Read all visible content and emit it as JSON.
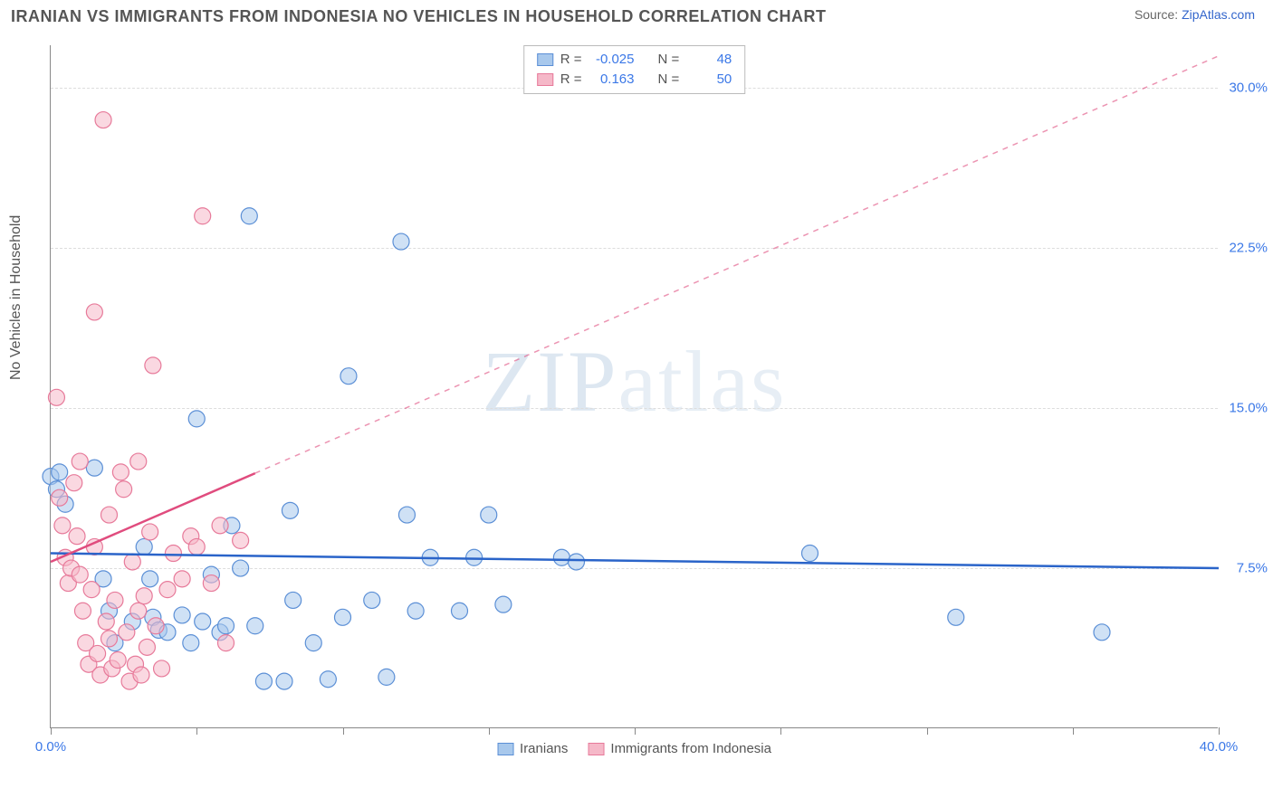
{
  "title": "IRANIAN VS IMMIGRANTS FROM INDONESIA NO VEHICLES IN HOUSEHOLD CORRELATION CHART",
  "source_prefix": "Source: ",
  "source_link": "ZipAtlas.com",
  "ylabel": "No Vehicles in Household",
  "watermark1": "ZIP",
  "watermark2": "atlas",
  "chart": {
    "type": "scatter",
    "xlim": [
      0,
      40
    ],
    "ylim": [
      0,
      32
    ],
    "xtick_positions": [
      0,
      5,
      10,
      15,
      20,
      25,
      30,
      35,
      40
    ],
    "xtick_labels_shown": {
      "0": "0.0%",
      "40": "40.0%"
    },
    "ytick_positions": [
      7.5,
      15.0,
      22.5,
      30.0
    ],
    "ytick_labels": [
      "7.5%",
      "15.0%",
      "22.5%",
      "30.0%"
    ],
    "grid_color": "#dddddd",
    "axis_color": "#888888",
    "background": "#ffffff",
    "series": [
      {
        "name": "Iranians",
        "fill": "#a8c8ec",
        "stroke": "#5b8fd6",
        "line_color": "#2a64c9",
        "R": "-0.025",
        "N": "48",
        "marker_r": 9,
        "trend": {
          "x1": 0,
          "y1": 8.2,
          "x2": 40,
          "y2": 7.5,
          "solid_until_x": 40
        },
        "points": [
          [
            0.0,
            11.8
          ],
          [
            0.2,
            11.2
          ],
          [
            0.3,
            12.0
          ],
          [
            0.5,
            10.5
          ],
          [
            1.5,
            12.2
          ],
          [
            1.8,
            7.0
          ],
          [
            2.0,
            5.5
          ],
          [
            2.2,
            4.0
          ],
          [
            2.8,
            5.0
          ],
          [
            3.2,
            8.5
          ],
          [
            3.4,
            7.0
          ],
          [
            3.5,
            5.2
          ],
          [
            3.7,
            4.6
          ],
          [
            4.0,
            4.5
          ],
          [
            4.5,
            5.3
          ],
          [
            4.8,
            4.0
          ],
          [
            5.0,
            14.5
          ],
          [
            5.2,
            5.0
          ],
          [
            5.5,
            7.2
          ],
          [
            5.8,
            4.5
          ],
          [
            6.0,
            4.8
          ],
          [
            6.2,
            9.5
          ],
          [
            6.5,
            7.5
          ],
          [
            6.8,
            24.0
          ],
          [
            7.0,
            4.8
          ],
          [
            7.3,
            2.2
          ],
          [
            8.0,
            2.2
          ],
          [
            8.2,
            10.2
          ],
          [
            8.3,
            6.0
          ],
          [
            9.0,
            4.0
          ],
          [
            9.5,
            2.3
          ],
          [
            10.0,
            5.2
          ],
          [
            10.2,
            16.5
          ],
          [
            11.0,
            6.0
          ],
          [
            11.5,
            2.4
          ],
          [
            12.0,
            22.8
          ],
          [
            12.2,
            10.0
          ],
          [
            12.5,
            5.5
          ],
          [
            13.0,
            8.0
          ],
          [
            14.0,
            5.5
          ],
          [
            14.5,
            8.0
          ],
          [
            15.0,
            10.0
          ],
          [
            15.5,
            5.8
          ],
          [
            17.5,
            8.0
          ],
          [
            18.0,
            7.8
          ],
          [
            26.0,
            8.2
          ],
          [
            31.0,
            5.2
          ],
          [
            36.0,
            4.5
          ]
        ]
      },
      {
        "name": "Immigrants from Indonesia",
        "fill": "#f5b8c8",
        "stroke": "#e77a9a",
        "line_color": "#e04c7e",
        "R": "0.163",
        "N": "50",
        "marker_r": 9,
        "trend": {
          "x1": 0,
          "y1": 7.8,
          "x2": 40,
          "y2": 31.5,
          "solid_until_x": 7
        },
        "points": [
          [
            0.2,
            15.5
          ],
          [
            0.3,
            10.8
          ],
          [
            0.4,
            9.5
          ],
          [
            0.5,
            8.0
          ],
          [
            0.6,
            6.8
          ],
          [
            0.7,
            7.5
          ],
          [
            0.8,
            11.5
          ],
          [
            0.9,
            9.0
          ],
          [
            1.0,
            12.5
          ],
          [
            1.0,
            7.2
          ],
          [
            1.1,
            5.5
          ],
          [
            1.2,
            4.0
          ],
          [
            1.3,
            3.0
          ],
          [
            1.4,
            6.5
          ],
          [
            1.5,
            8.5
          ],
          [
            1.5,
            19.5
          ],
          [
            1.6,
            3.5
          ],
          [
            1.7,
            2.5
          ],
          [
            1.8,
            28.5
          ],
          [
            1.9,
            5.0
          ],
          [
            2.0,
            4.2
          ],
          [
            2.0,
            10.0
          ],
          [
            2.1,
            2.8
          ],
          [
            2.2,
            6.0
          ],
          [
            2.3,
            3.2
          ],
          [
            2.4,
            12.0
          ],
          [
            2.5,
            11.2
          ],
          [
            2.6,
            4.5
          ],
          [
            2.7,
            2.2
          ],
          [
            2.8,
            7.8
          ],
          [
            2.9,
            3.0
          ],
          [
            3.0,
            12.5
          ],
          [
            3.0,
            5.5
          ],
          [
            3.1,
            2.5
          ],
          [
            3.2,
            6.2
          ],
          [
            3.3,
            3.8
          ],
          [
            3.4,
            9.2
          ],
          [
            3.5,
            17.0
          ],
          [
            3.6,
            4.8
          ],
          [
            3.8,
            2.8
          ],
          [
            4.0,
            6.5
          ],
          [
            4.2,
            8.2
          ],
          [
            4.5,
            7.0
          ],
          [
            4.8,
            9.0
          ],
          [
            5.0,
            8.5
          ],
          [
            5.2,
            24.0
          ],
          [
            5.5,
            6.8
          ],
          [
            5.8,
            9.5
          ],
          [
            6.0,
            4.0
          ],
          [
            6.5,
            8.8
          ]
        ]
      }
    ]
  },
  "legend_top_rows": [
    {
      "series_idx": 0,
      "r_label": "R =",
      "n_label": "N ="
    },
    {
      "series_idx": 1,
      "r_label": "R =",
      "n_label": "N ="
    }
  ]
}
